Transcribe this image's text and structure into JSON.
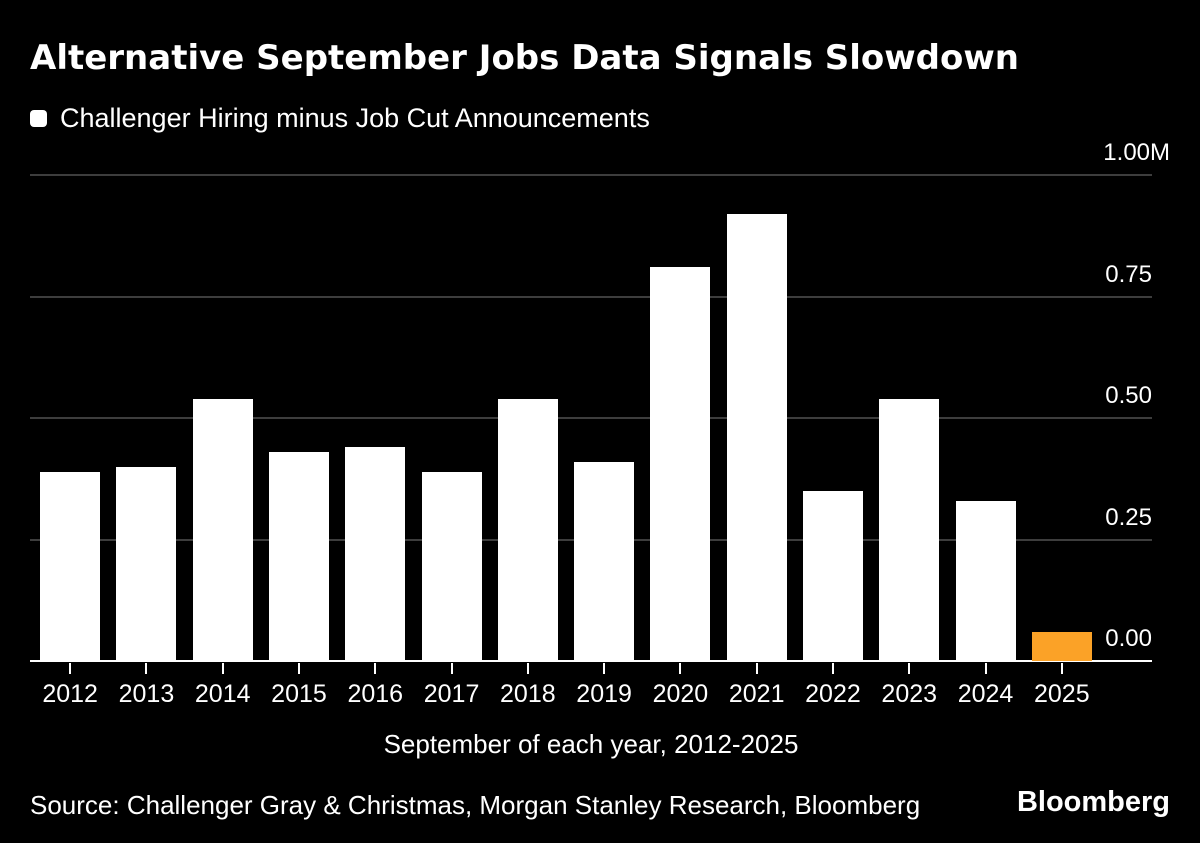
{
  "header": {
    "title": "Alternative September Jobs Data Signals Slowdown",
    "legend": {
      "marker_icon": "square-swatch-icon",
      "label": "Challenger Hiring minus Job Cut Announcements"
    }
  },
  "chart_data": {
    "type": "bar",
    "title": "Alternative September Jobs Data Signals Slowdown",
    "legend_entries": [
      "Challenger Hiring minus Job Cut Announcements"
    ],
    "legend_position": "top-left",
    "grid": "horizontal",
    "unit": "millions",
    "categories": [
      "2012",
      "2013",
      "2014",
      "2015",
      "2016",
      "2017",
      "2018",
      "2019",
      "2020",
      "2021",
      "2022",
      "2023",
      "2024",
      "2025"
    ],
    "values": [
      0.39,
      0.4,
      0.54,
      0.43,
      0.44,
      0.39,
      0.54,
      0.41,
      0.81,
      0.92,
      0.35,
      0.54,
      0.33,
      0.06
    ],
    "highlight_category": "2025",
    "xlabel": "September of each year, 2012-2025",
    "ylabel": "",
    "ylim": [
      0,
      1.0
    ],
    "yticks": [
      {
        "value": 1.0,
        "label": "1.00M"
      },
      {
        "value": 0.75,
        "label": "0.75"
      },
      {
        "value": 0.5,
        "label": "0.50"
      },
      {
        "value": 0.25,
        "label": "0.25"
      },
      {
        "value": 0.0,
        "label": "0.00"
      }
    ]
  },
  "footer": {
    "source": "Source: Challenger Gray & Christmas, Morgan Stanley Research, Bloomberg",
    "brand": "Bloomberg"
  },
  "colors": {
    "background": "#000000",
    "bar_default": "#ffffff",
    "bar_highlight": "#fba227",
    "gridline": "#3d3d3d",
    "axis_line": "#ffffff",
    "text": "#ffffff"
  }
}
